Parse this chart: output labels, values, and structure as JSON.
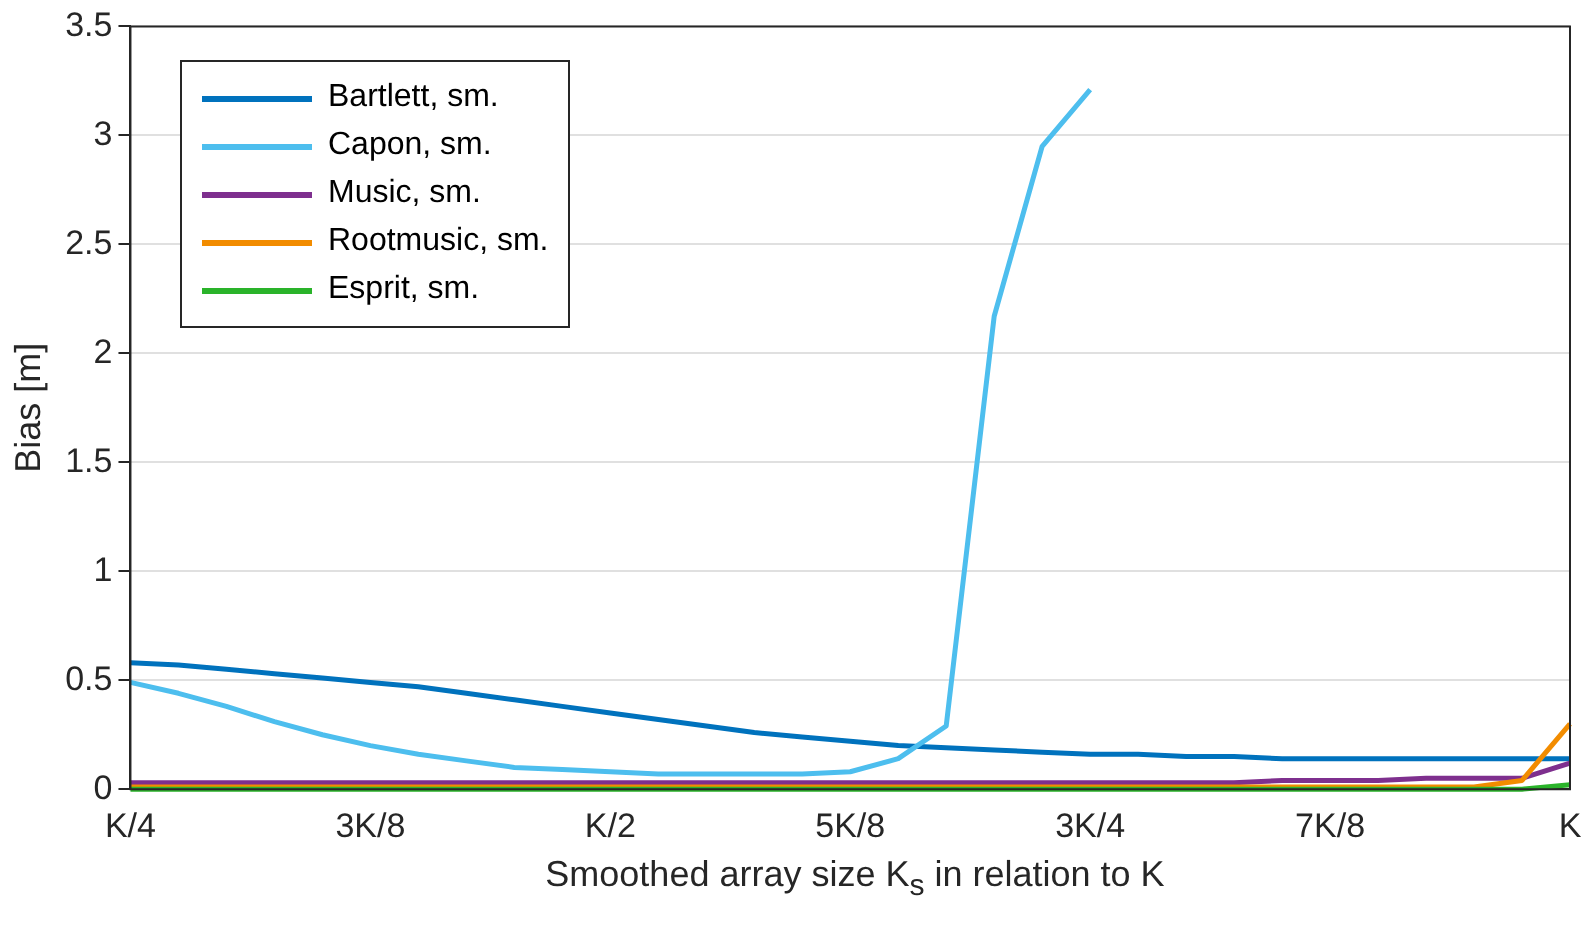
{
  "chart_data": {
    "type": "line",
    "xlabel": "Smoothed array size K$_{s}$ in relation to K",
    "ylabel": "Bias [m]",
    "categories": [
      "K/4",
      null,
      null,
      null,
      null,
      "3K/8",
      null,
      null,
      null,
      null,
      "K/2",
      null,
      null,
      null,
      null,
      "5K/8",
      null,
      null,
      null,
      null,
      "3K/4",
      null,
      null,
      null,
      null,
      "7K/8",
      null,
      null,
      null,
      null,
      "K"
    ],
    "ylim": [
      0,
      3.5
    ],
    "yticks": [
      0,
      0.5,
      1,
      1.5,
      2,
      2.5,
      3,
      3.5
    ],
    "grid": true,
    "legend": "top left",
    "line_style": "solid",
    "marker": "none",
    "series": [
      {
        "name": "Bartlett, sm.",
        "color": "#0072bd",
        "values": [
          0.58,
          0.57,
          0.55,
          0.53,
          0.51,
          0.49,
          0.47,
          0.44,
          0.41,
          0.38,
          0.35,
          0.32,
          0.29,
          0.26,
          0.24,
          0.22,
          0.2,
          0.19,
          0.18,
          0.17,
          0.16,
          0.16,
          0.15,
          0.15,
          0.14,
          0.14,
          0.14,
          0.14,
          0.14,
          0.14,
          0.14
        ]
      },
      {
        "name": "Capon, sm.",
        "color": "#4dbeee",
        "values": [
          0.49,
          0.44,
          0.38,
          0.31,
          0.25,
          0.2,
          0.16,
          0.13,
          0.1,
          0.09,
          0.08,
          0.07,
          0.07,
          0.07,
          0.07,
          0.08,
          0.14,
          0.29,
          2.17,
          2.95,
          3.21,
          null,
          null,
          null,
          null,
          null,
          null,
          null,
          null,
          null,
          null
        ]
      },
      {
        "name": "Music, sm.",
        "color": "#7e2f8e",
        "values": [
          0.03,
          0.03,
          0.03,
          0.03,
          0.03,
          0.03,
          0.03,
          0.03,
          0.03,
          0.03,
          0.03,
          0.03,
          0.03,
          0.03,
          0.03,
          0.03,
          0.03,
          0.03,
          0.03,
          0.03,
          0.03,
          0.03,
          0.03,
          0.03,
          0.04,
          0.04,
          0.04,
          0.05,
          0.05,
          0.05,
          0.12
        ]
      },
      {
        "name": "Rootmusic, sm.",
        "color": "#f28c00",
        "values": [
          0.01,
          0.01,
          0.01,
          0.01,
          0.01,
          0.01,
          0.01,
          0.01,
          0.01,
          0.01,
          0.01,
          0.01,
          0.01,
          0.01,
          0.01,
          0.01,
          0.01,
          0.01,
          0.01,
          0.01,
          0.01,
          0.01,
          0.01,
          0.01,
          0.01,
          0.01,
          0.01,
          0.01,
          0.01,
          0.04,
          0.3
        ]
      },
      {
        "name": "Esprit, sm.",
        "color": "#2ab32a",
        "values": [
          0,
          0,
          0,
          0,
          0,
          0,
          0,
          0,
          0,
          0,
          0,
          0,
          0,
          0,
          0,
          0,
          0,
          0,
          0,
          0,
          0,
          0,
          0,
          0,
          0,
          0,
          0,
          0,
          0,
          0,
          0.02
        ]
      }
    ]
  }
}
